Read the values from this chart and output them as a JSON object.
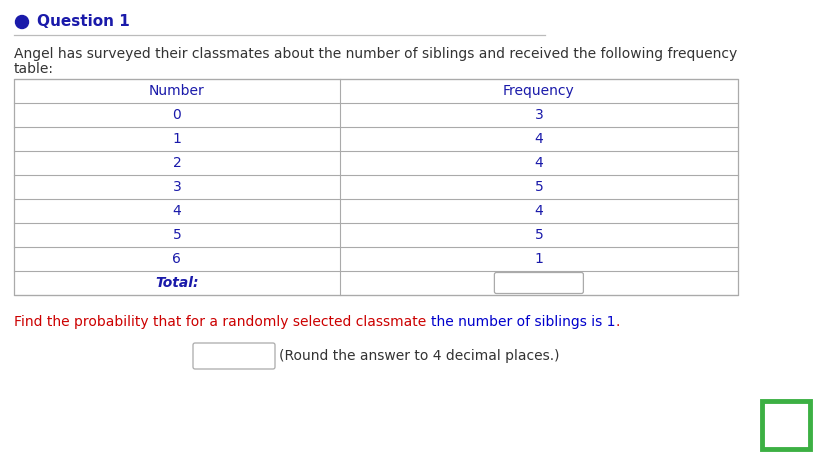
{
  "question_label": "Question 1",
  "bullet_color": "#1a1aaa",
  "intro_text_line1": "Angel has surveyed their classmates about the number of siblings and received the following frequency",
  "intro_text_line2": "table:",
  "col_headers": [
    "Number",
    "Frequency"
  ],
  "numbers": [
    "0",
    "1",
    "2",
    "3",
    "4",
    "5",
    "6"
  ],
  "frequencies": [
    "3",
    "4",
    "4",
    "5",
    "4",
    "5",
    "1"
  ],
  "total_label": "Total:",
  "find_text_part1": "Find the probability that for a randomly selected classmate ",
  "find_text_part2": "the number of siblings is 1",
  "find_text_part3": ".",
  "find_color1": "#cc0000",
  "find_color2": "#0000cc",
  "round_text": "(Round the answer to 4 decimal places.)",
  "header_color": "#1a1aaa",
  "data_color": "#1a1aaa",
  "table_line_color": "#aaaaaa",
  "bg_color": "#ffffff",
  "green_box_color": "#3cb043",
  "text_color": "#333333",
  "title_color": "#1a1aaa",
  "title_fontsize": 11,
  "body_fontsize": 10,
  "table_fontsize": 10
}
